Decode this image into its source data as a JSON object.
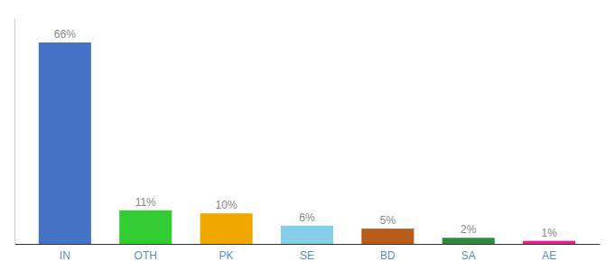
{
  "chart_data": {
    "type": "bar",
    "categories": [
      "IN",
      "OTH",
      "PK",
      "SE",
      "BD",
      "SA",
      "AE"
    ],
    "values": [
      66,
      11,
      10,
      6,
      5,
      2,
      1
    ],
    "value_labels": [
      "66%",
      "11%",
      "10%",
      "6%",
      "5%",
      "2%",
      "1%"
    ],
    "colors": [
      "#4472c4",
      "#33cc33",
      "#f0a800",
      "#87ceeb",
      "#b85c1a",
      "#2d8c3c",
      "#e91e8c"
    ],
    "ylim": [
      0,
      74
    ],
    "data_labels": true,
    "tick_labels": "x",
    "grid": false
  }
}
